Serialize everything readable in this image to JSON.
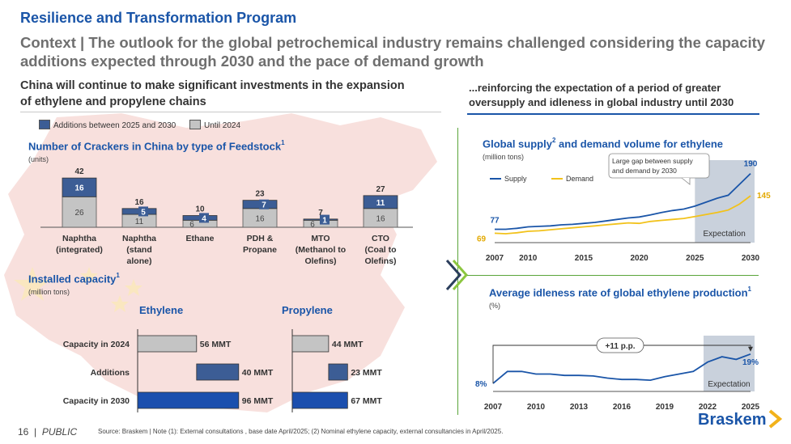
{
  "header": {
    "kicker": "Resilience and Transformation Program",
    "headline": "Context | The outlook for the global petrochemical industry remains challenged considering the capacity additions expected through 2030 and the pace of demand growth",
    "left_subtitle": "China will continue to make significant investments in the expansion of ethylene and propylene chains",
    "right_subtitle": "...reinforcing the expectation of a period of greater oversupply and idleness in global industry until 2030"
  },
  "legend": {
    "additions": "Additions  between 2025 and 2030",
    "until": "Until 2024",
    "additions_color": "#3c5d95",
    "until_color": "#c4c4c4"
  },
  "crackers": {
    "title": "Number of Crackers in China by type of Feedstock",
    "title_sup": "1",
    "unit": "(units)"
  },
  "installed": {
    "title": "Installed capacity",
    "title_sup": "1",
    "unit": "(million tons)",
    "ethylene_label": "Ethylene",
    "propylene_label": "Propylene",
    "row_labels": [
      "Capacity in 2024",
      "Additions",
      "Capacity in 2030"
    ]
  },
  "supply_chart": {
    "title": "Global supply",
    "title_sup": "2",
    "title_rest": " and demand volume for ethylene",
    "unit": "(million tons)",
    "callout": "Large gap between supply and demand by 2030",
    "expectation": "Expectation"
  },
  "idle_chart": {
    "title": "Average idleness rate of global ethylene production",
    "title_sup": "1",
    "unit": "(%)",
    "callout": "+11 p.p.",
    "expectation": "Expectation"
  },
  "footer": {
    "page": "16",
    "sep": "|",
    "class": "PUBLIC",
    "source": "Source: Braskem | Note (1): External consultations , base date April/2025; (2) Nominal ethylene capacity, external consultancies in April/2025.",
    "brand": "Braskem"
  },
  "chart_data": [
    {
      "type": "bar",
      "title": "Number of Crackers in China by type of Feedstock",
      "categories": [
        "Naphtha (integrated)",
        "Naphtha (stand alone)",
        "Ethane",
        "PDH & Propane",
        "MTO (Methanol to Olefins)",
        "CTO (Coal to Olefins)"
      ],
      "series": [
        {
          "name": "Until 2024",
          "values": [
            26,
            11,
            6,
            16,
            6,
            16
          ]
        },
        {
          "name": "Additions  between 2025 and 2030",
          "values": [
            16,
            5,
            4,
            7,
            1,
            11
          ]
        }
      ],
      "totals": [
        42,
        16,
        10,
        23,
        7,
        27
      ],
      "ylabel": "(units)",
      "stacked": true
    },
    {
      "type": "bar",
      "title": "Ethylene",
      "categories": [
        "Capacity in 2024",
        "Additions",
        "Capacity in 2030"
      ],
      "values": [
        56,
        40,
        96
      ],
      "value_labels": [
        "56 MMT",
        "40 MMT",
        "96 MMT"
      ],
      "waterfall": true
    },
    {
      "type": "bar",
      "title": "Propylene",
      "categories": [
        "Capacity in 2024",
        "Additions",
        "Capacity in 2030"
      ],
      "values": [
        44,
        23,
        67
      ],
      "value_labels": [
        "44 MMT",
        "23 MMT",
        "67 MMT"
      ],
      "waterfall": true
    },
    {
      "type": "line",
      "title": "Global supply and demand volume for ethylene",
      "ylabel": "(million tons)",
      "xticks": [
        2007,
        2010,
        2015,
        2020,
        2025,
        2030
      ],
      "xlim": [
        2007,
        2030
      ],
      "series": [
        {
          "name": "Supply",
          "color": "#1a55a8",
          "x": [
            2007,
            2008,
            2009,
            2010,
            2011,
            2012,
            2013,
            2014,
            2015,
            2016,
            2017,
            2018,
            2019,
            2020,
            2021,
            2022,
            2023,
            2024,
            2025,
            2026,
            2027,
            2028,
            2029,
            2030
          ],
          "y": [
            77,
            77,
            79,
            82,
            83,
            84,
            86,
            87,
            89,
            91,
            94,
            97,
            100,
            102,
            106,
            111,
            115,
            118,
            124,
            132,
            140,
            146,
            168,
            190
          ]
        },
        {
          "name": "Demand",
          "color": "#f2c21b",
          "x": [
            2007,
            2008,
            2009,
            2010,
            2011,
            2012,
            2013,
            2014,
            2015,
            2016,
            2017,
            2018,
            2019,
            2020,
            2021,
            2022,
            2023,
            2024,
            2025,
            2026,
            2027,
            2028,
            2029,
            2030
          ],
          "y": [
            69,
            68,
            70,
            73,
            74,
            76,
            78,
            80,
            82,
            84,
            86,
            88,
            90,
            89,
            93,
            95,
            97,
            99,
            103,
            107,
            111,
            116,
            128,
            145
          ]
        }
      ],
      "labels": {
        "supply_start": "77",
        "demand_start": "69",
        "supply_end": "190",
        "demand_end": "145"
      },
      "shaded_range": [
        2025,
        2030
      ]
    },
    {
      "type": "line",
      "title": "Average idleness rate of global ethylene production",
      "ylabel": "(%)",
      "xticks": [
        2007,
        2010,
        2013,
        2016,
        2019,
        2022,
        2025
      ],
      "xlim": [
        2007,
        2025
      ],
      "series": [
        {
          "name": "Idleness rate",
          "color": "#1a55a8",
          "x": [
            2007,
            2008,
            2009,
            2010,
            2011,
            2012,
            2013,
            2014,
            2015,
            2016,
            2017,
            2018,
            2019,
            2020,
            2021,
            2022,
            2023,
            2024,
            2025
          ],
          "y": [
            8,
            12.5,
            12.5,
            11.5,
            11.5,
            11,
            11,
            10.8,
            10,
            9.5,
            9.5,
            9.2,
            10.5,
            11.5,
            12.5,
            16,
            18,
            17,
            19
          ]
        }
      ],
      "labels": {
        "start": "8%",
        "end": "19%"
      },
      "shaded_range": [
        2022,
        2025
      ]
    }
  ]
}
